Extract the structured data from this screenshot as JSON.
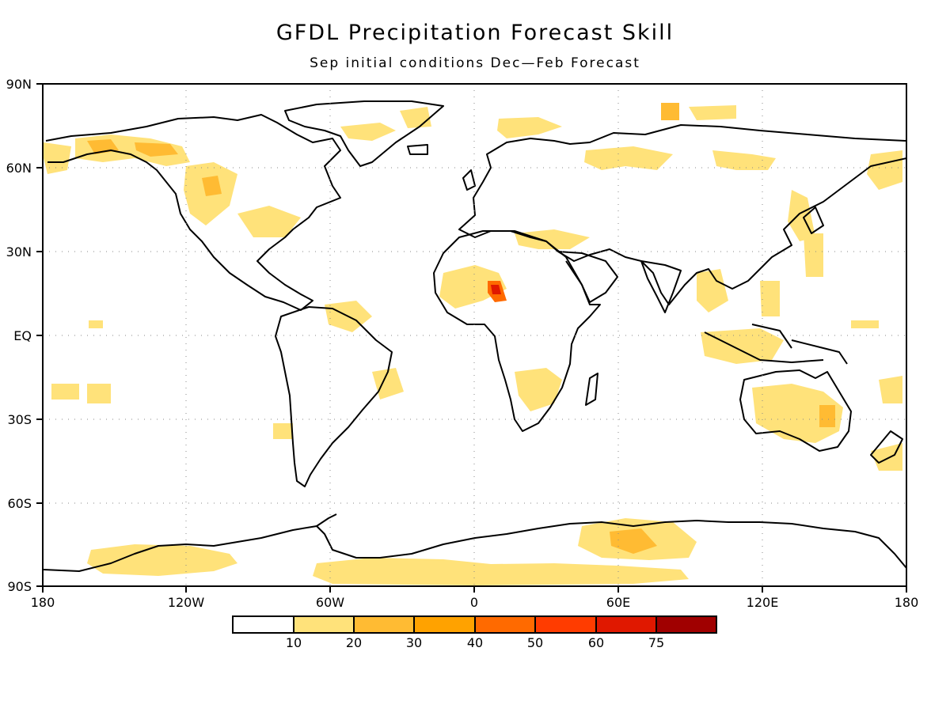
{
  "map": {
    "title": "GFDL Precipitation Forecast Skill",
    "subtitle": "Sep initial conditions   Dec—Feb Forecast",
    "lat_labels": [
      "90N",
      "60N",
      "30N",
      "EQ",
      "30S",
      "60S",
      "90S"
    ],
    "lon_labels": [
      "180",
      "120W",
      "60W",
      "0",
      "60E",
      "120E",
      "180"
    ]
  },
  "legend": {
    "levels": [
      "10",
      "20",
      "30",
      "40",
      "50",
      "60",
      "75"
    ],
    "colors": [
      "#ffffff",
      "#ffe27a",
      "#ffbb33",
      "#ffa200",
      "#ff6a00",
      "#ff3c00",
      "#e01800",
      "#a00000"
    ]
  }
}
